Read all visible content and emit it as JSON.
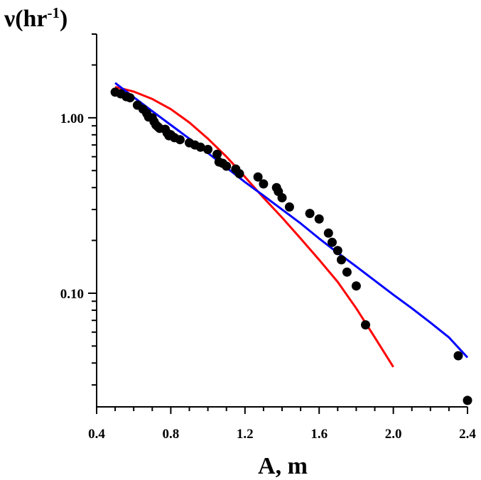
{
  "chart_data": {
    "type": "scatter",
    "xlabel": "A, m",
    "ylabel": {
      "main": "ν(hr",
      "sup": "-1",
      "close": ")"
    },
    "xlim": [
      0.4,
      2.4
    ],
    "ylim": [
      0.0225,
      3.0
    ],
    "yscale": "log",
    "xticks": [
      0.4,
      0.8,
      1.2,
      1.6,
      2.0,
      2.4
    ],
    "xtick_labels": [
      "0.4",
      "0.8",
      "1.2",
      "1.6",
      "2.0",
      "2.4"
    ],
    "yticks_labeled": [
      1.0,
      0.1
    ],
    "ytick_labels": [
      "1.00",
      "0.10"
    ],
    "grid": false,
    "series": [
      {
        "type": "scatter",
        "color": "#000000",
        "x": [
          0.5,
          0.53,
          0.56,
          0.58,
          0.62,
          0.65,
          0.67,
          0.68,
          0.7,
          0.71,
          0.72,
          0.73,
          0.74,
          0.77,
          0.78,
          0.79,
          0.8,
          0.82,
          0.85,
          0.9,
          0.93,
          0.96,
          1.0,
          1.05,
          1.06,
          1.08,
          1.1,
          1.15,
          1.17,
          1.27,
          1.3,
          1.37,
          1.38,
          1.4,
          1.44,
          1.55,
          1.6,
          1.65,
          1.67,
          1.7,
          1.72,
          1.75,
          1.8,
          1.85,
          2.35,
          2.4
        ],
        "y": [
          1.4,
          1.37,
          1.32,
          1.3,
          1.18,
          1.12,
          1.06,
          1.01,
          1.0,
          0.95,
          0.91,
          0.89,
          0.87,
          0.86,
          0.82,
          0.79,
          0.8,
          0.77,
          0.75,
          0.72,
          0.7,
          0.68,
          0.66,
          0.62,
          0.56,
          0.55,
          0.53,
          0.51,
          0.48,
          0.46,
          0.42,
          0.4,
          0.38,
          0.35,
          0.31,
          0.285,
          0.265,
          0.22,
          0.195,
          0.175,
          0.155,
          0.132,
          0.11,
          0.066,
          0.044,
          0.0245
        ]
      },
      {
        "type": "line",
        "color": "#ff0000",
        "x": [
          0.5,
          0.6,
          0.7,
          0.8,
          0.9,
          1.0,
          1.1,
          1.2,
          1.3,
          1.4,
          1.5,
          1.6,
          1.7,
          1.8,
          1.9,
          2.0
        ],
        "y": [
          1.5,
          1.41,
          1.28,
          1.12,
          0.94,
          0.76,
          0.6,
          0.46,
          0.35,
          0.27,
          0.205,
          0.155,
          0.116,
          0.082,
          0.056,
          0.038
        ]
      },
      {
        "type": "line",
        "color": "#0000ff",
        "x": [
          0.5,
          0.6,
          0.7,
          0.8,
          0.9,
          1.0,
          1.1,
          1.2,
          1.3,
          1.4,
          1.5,
          1.6,
          1.7,
          1.8,
          1.9,
          2.0,
          2.1,
          2.2,
          2.3,
          2.4
        ],
        "y": [
          1.58,
          1.31,
          1.09,
          0.91,
          0.76,
          0.63,
          0.52,
          0.43,
          0.36,
          0.3,
          0.25,
          0.205,
          0.17,
          0.142,
          0.118,
          0.098,
          0.082,
          0.068,
          0.056,
          0.043
        ]
      }
    ]
  }
}
